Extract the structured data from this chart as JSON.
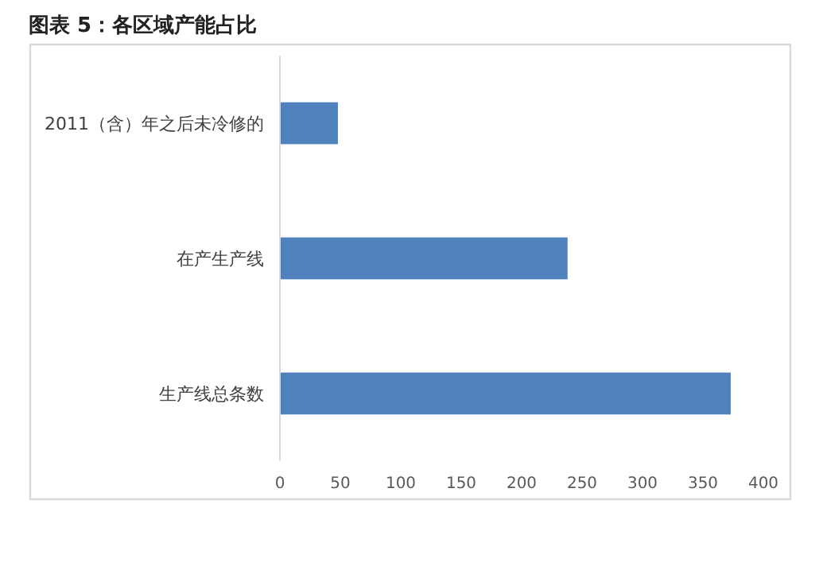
{
  "chart_data": {
    "type": "bar",
    "orientation": "horizontal",
    "title": "图表 5：各区域产能占比",
    "categories": [
      "2011（含）年之后未冷修的",
      "在产生产线",
      "生产线总条数"
    ],
    "values": [
      48,
      238,
      373
    ],
    "color": "#4f81bd",
    "xlim": [
      0,
      400
    ],
    "xticks": [
      0,
      50,
      100,
      150,
      200,
      250,
      300,
      350,
      400
    ],
    "grid": false
  }
}
